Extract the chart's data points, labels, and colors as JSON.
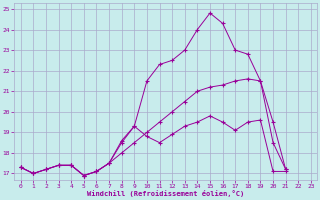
{
  "title": "",
  "xlabel": "Windchill (Refroidissement éolien,°C)",
  "ylabel": "",
  "bg_color": "#c8ecec",
  "line_color": "#990099",
  "grid_color": "#aaaacc",
  "xlim": [
    -0.5,
    23.5
  ],
  "ylim": [
    16.7,
    25.3
  ],
  "yticks": [
    17,
    18,
    19,
    20,
    21,
    22,
    23,
    24,
    25
  ],
  "xticks": [
    0,
    1,
    2,
    3,
    4,
    5,
    6,
    7,
    8,
    9,
    10,
    11,
    12,
    13,
    14,
    15,
    16,
    17,
    18,
    19,
    20,
    21,
    22,
    23
  ],
  "lines": [
    {
      "x": [
        0,
        1,
        2,
        3,
        4,
        5,
        6,
        7,
        8,
        9,
        10,
        11,
        12,
        13,
        14,
        15,
        16,
        17,
        18,
        19,
        20,
        21
      ],
      "y": [
        17.3,
        17.0,
        17.2,
        17.4,
        17.4,
        16.9,
        17.1,
        17.5,
        18.6,
        19.3,
        18.8,
        18.5,
        18.9,
        19.3,
        19.5,
        19.8,
        19.5,
        19.1,
        19.5,
        19.6,
        17.1,
        17.1
      ]
    },
    {
      "x": [
        0,
        1,
        2,
        3,
        4,
        5,
        6,
        7,
        8,
        9,
        10,
        11,
        12,
        13,
        14,
        15,
        16,
        17,
        18,
        19,
        20,
        21
      ],
      "y": [
        17.3,
        17.0,
        17.2,
        17.4,
        17.4,
        16.9,
        17.1,
        17.5,
        18.0,
        18.5,
        19.0,
        19.5,
        20.0,
        20.5,
        21.0,
        21.2,
        21.3,
        21.5,
        21.6,
        21.5,
        18.5,
        17.2
      ]
    },
    {
      "x": [
        0,
        1,
        2,
        3,
        4,
        5,
        6,
        7,
        8,
        9,
        10,
        11,
        12,
        13,
        14,
        15,
        16,
        17,
        18,
        19,
        20,
        21
      ],
      "y": [
        17.3,
        17.0,
        17.2,
        17.4,
        17.4,
        16.9,
        17.1,
        17.5,
        18.5,
        19.3,
        21.5,
        22.3,
        22.5,
        23.0,
        24.0,
        24.8,
        24.3,
        23.0,
        22.8,
        21.5,
        19.5,
        17.2
      ]
    }
  ]
}
